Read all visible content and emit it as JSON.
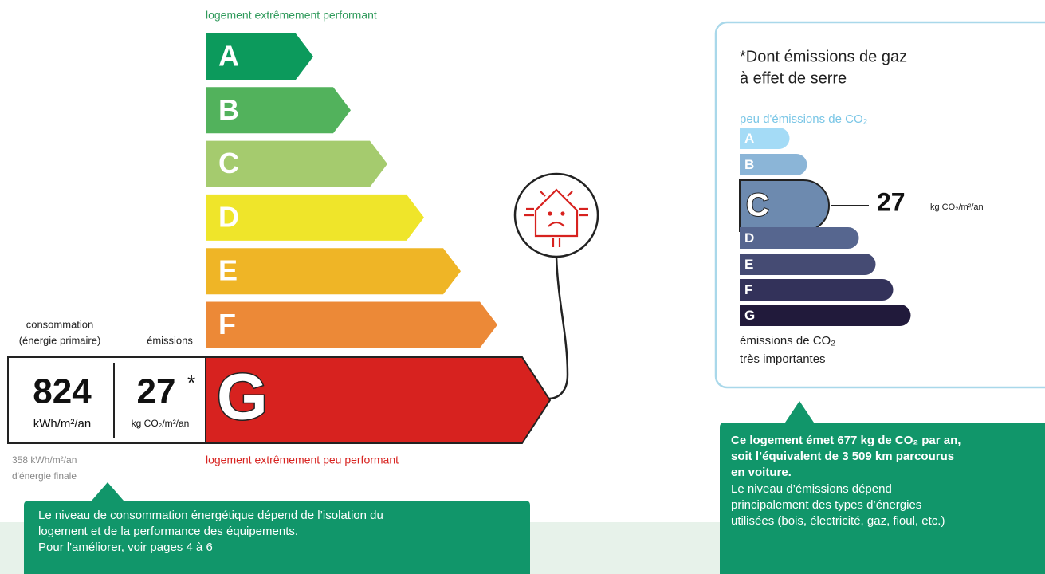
{
  "energy_label": {
    "top_label": "logement extrêmement performant",
    "classes": [
      "A",
      "B",
      "C",
      "D",
      "E",
      "F",
      "G"
    ],
    "consumption_label": [
      "consommation",
      "(énergie primaire)"
    ],
    "emissions_label": "émissions",
    "consumption_value": 824,
    "consumption_unit": "kWh/m²/an",
    "emissions_value": 27,
    "emissions_star": "*",
    "emissions_unit": "kg CO₂/m²/an",
    "bottom_label": "logement extrêmement peu performant",
    "final_energy": [
      "358 kWh/m²/an",
      "d'énergie finale"
    ]
  },
  "energy_callout": {
    "lines": [
      "Le niveau de consommation énergétique dépend de l’isolation du",
      "logement et de la performance des équipements.",
      "Pour l'améliorer, voir pages 4 à 6"
    ]
  },
  "climate_label": {
    "title": [
      "*Dont émissions de gaz",
      "à effet de serre"
    ],
    "top_label": "peu d'émissions de CO₂",
    "classes": [
      "A",
      "B",
      "C",
      "D",
      "E",
      "F",
      "G"
    ],
    "value": 27,
    "unit": "kg CO₂/m²/an",
    "bottom_label": [
      "émissions de CO₂",
      "très importantes"
    ]
  },
  "climate_callout": {
    "bold_lines": [
      "Ce logement émet 677 kg de CO₂ par an,",
      "soit l’équivalent de 3 509 km parcourus",
      "en voiture."
    ],
    "lines": [
      "Le niveau d’émissions dépend",
      "principalement des types d’énergies",
      "utilisées (bois, électricité, gaz, fioul, etc.)"
    ]
  }
}
